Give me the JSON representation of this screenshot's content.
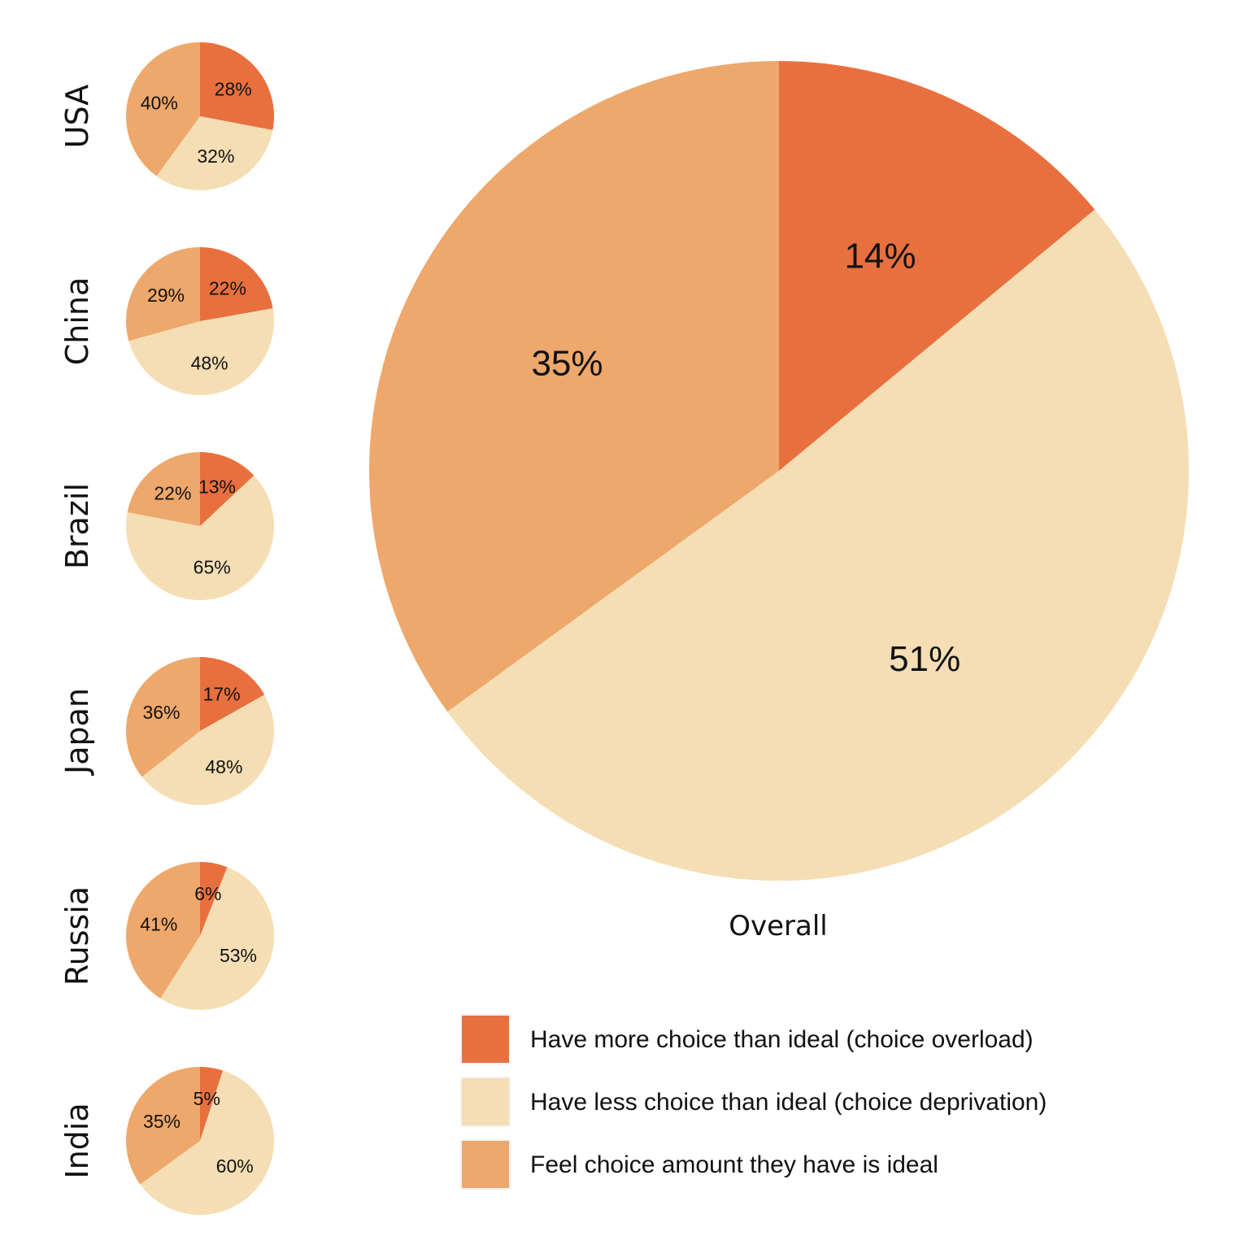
{
  "chart_data": {
    "type": "pie",
    "colors": {
      "overload": "#E8703E",
      "deprivation": "#F5DEB4",
      "ideal": "#EEA86B"
    },
    "legend": [
      {
        "key": "overload",
        "label": "Have more choice than ideal (choice overload)"
      },
      {
        "key": "deprivation",
        "label": "Have less choice than ideal (choice deprivation)"
      },
      {
        "key": "ideal",
        "label": "Feel choice amount they have is ideal"
      }
    ],
    "overall": {
      "title": "Overall",
      "values": {
        "overload": 14,
        "deprivation": 51,
        "ideal": 35
      },
      "labels": {
        "overload": "14%",
        "deprivation": "51%",
        "ideal": "35%"
      }
    },
    "countries": [
      {
        "name": "USA",
        "values": {
          "overload": 28,
          "deprivation": 32,
          "ideal": 40
        },
        "labels": {
          "overload": "28%",
          "deprivation": "32%",
          "ideal": "40%"
        }
      },
      {
        "name": "China",
        "values": {
          "overload": 22,
          "deprivation": 48,
          "ideal": 29
        },
        "labels": {
          "overload": "22%",
          "deprivation": "48%",
          "ideal": "29%"
        }
      },
      {
        "name": "Brazil",
        "values": {
          "overload": 13,
          "deprivation": 65,
          "ideal": 22
        },
        "labels": {
          "overload": "13%",
          "deprivation": "65%",
          "ideal": "22%"
        }
      },
      {
        "name": "Japan",
        "values": {
          "overload": 17,
          "deprivation": 48,
          "ideal": 36
        },
        "labels": {
          "overload": "17%",
          "deprivation": "48%",
          "ideal": "36%"
        }
      },
      {
        "name": "Russia",
        "values": {
          "overload": 6,
          "deprivation": 53,
          "ideal": 41
        },
        "labels": {
          "overload": "6%",
          "deprivation": "53%",
          "ideal": "41%"
        }
      },
      {
        "name": "India",
        "values": {
          "overload": 5,
          "deprivation": 60,
          "ideal": 35
        },
        "labels": {
          "overload": "5%",
          "deprivation": "60%",
          "ideal": "35%"
        }
      }
    ]
  }
}
